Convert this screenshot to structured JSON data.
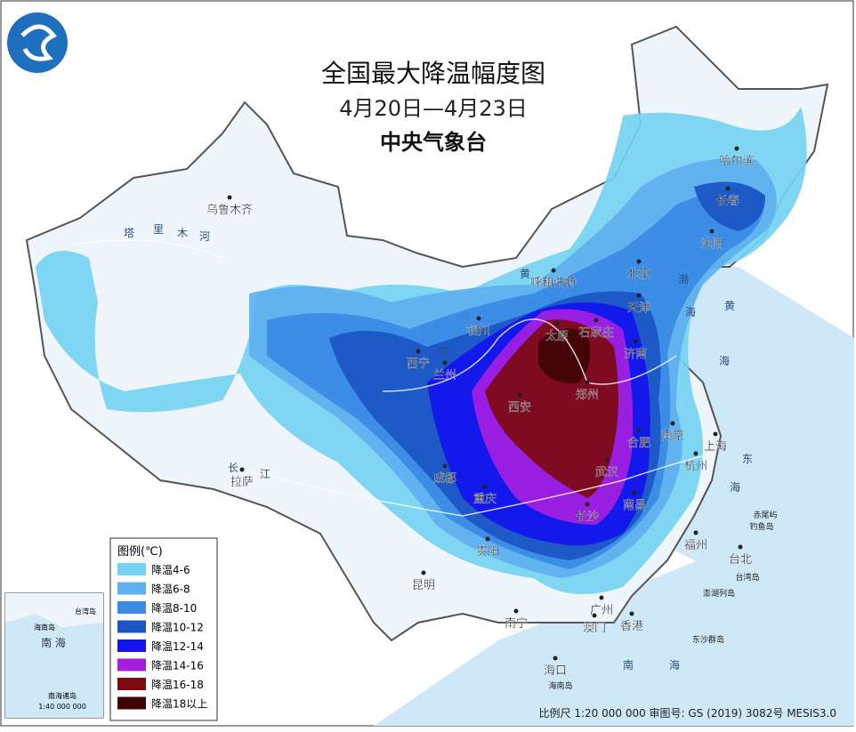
{
  "header": {
    "title": "全国最大降温幅度图",
    "date": "4月20日—4月23日",
    "issuer": "中央气象台"
  },
  "legend": {
    "title": "图例(℃)",
    "items": [
      {
        "label": "降温4-6",
        "color": "#74d3f2"
      },
      {
        "label": "降温6-8",
        "color": "#5eb0ef"
      },
      {
        "label": "降温8-10",
        "color": "#3a8ae4"
      },
      {
        "label": "降温10-12",
        "color": "#1b55c4"
      },
      {
        "label": "降温12-14",
        "color": "#1414ee"
      },
      {
        "label": "降温14-16",
        "color": "#a41fe0"
      },
      {
        "label": "降温16-18",
        "color": "#7d0a12"
      },
      {
        "label": "降温18以上",
        "color": "#3e0505"
      }
    ]
  },
  "cities": [
    "乌鲁木齐",
    "哈尔滨",
    "长春",
    "沈阳",
    "呼和浩特",
    "北京",
    "天津",
    "银川",
    "太原",
    "石家庄",
    "济南",
    "西宁",
    "兰州",
    "郑州",
    "西安",
    "南京",
    "合肥",
    "上海",
    "拉萨",
    "成都",
    "武汉",
    "杭州",
    "重庆",
    "长沙",
    "南昌",
    "福州",
    "台北",
    "贵阳",
    "昆明",
    "广州",
    "南宁",
    "澳门",
    "香港",
    "海口"
  ],
  "places": [
    "赤尾屿",
    "钓鱼岛",
    "台湾岛",
    "澎湖列岛",
    "东沙群岛",
    "海南岛"
  ],
  "waters": [
    "塔",
    "里",
    "木",
    "河",
    "黄",
    "河",
    "长",
    "江",
    "渤",
    "海",
    "黄",
    "海",
    "东",
    "海",
    "南",
    "海"
  ],
  "inset": {
    "sea": "南 海",
    "hainan": "海南岛",
    "taiwan": "台湾岛",
    "islands": "南海诸岛",
    "scale": "1:40 000 000"
  },
  "footer": "比例尺 1:20 000 000 审图号: GS (2019) 3082号 MESIS3.0"
}
